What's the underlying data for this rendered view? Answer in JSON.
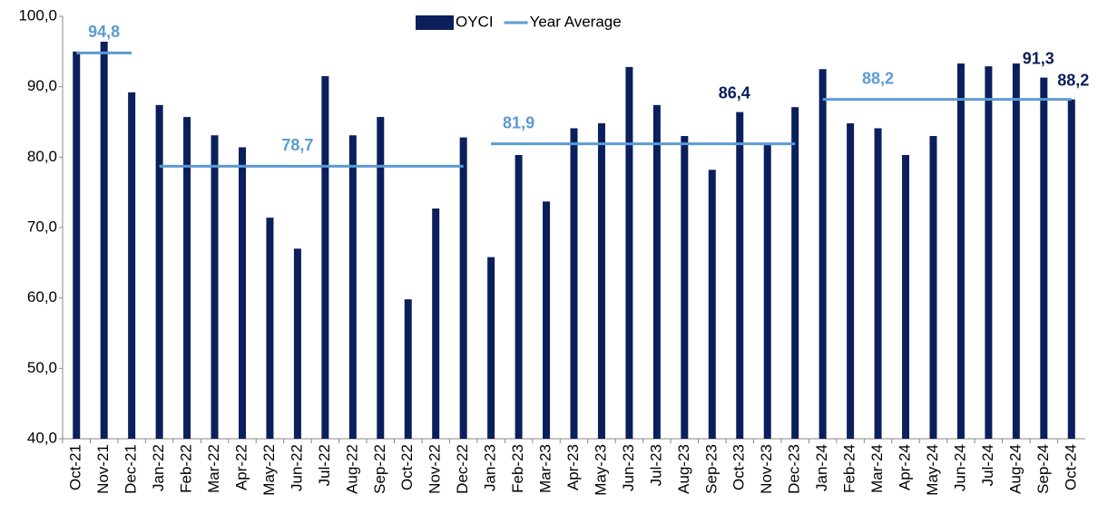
{
  "chart_data": {
    "type": "bar",
    "categories": [
      "Oct-21",
      "Nov-21",
      "Dec-21",
      "Jan-22",
      "Feb-22",
      "Mar-22",
      "Apr-22",
      "May-22",
      "Jun-22",
      "Jul-22",
      "Aug-22",
      "Sep-22",
      "Oct-22",
      "Nov-22",
      "Dec-22",
      "Jan-23",
      "Feb-23",
      "Mar-23",
      "Apr-23",
      "May-23",
      "Jun-23",
      "Jul-23",
      "Aug-23",
      "Sep-23",
      "Oct-23",
      "Nov-23",
      "Dec-23",
      "Jan-24",
      "Feb-24",
      "Mar-24",
      "Apr-24",
      "May-24",
      "Jun-24",
      "Jul-24",
      "Aug-24",
      "Sep-24",
      "Oct-24"
    ],
    "series": [
      {
        "name": "OYCI",
        "color": "#0b1f5c",
        "values": [
          95.0,
          96.4,
          89.2,
          87.4,
          85.7,
          83.1,
          81.4,
          71.4,
          67.0,
          91.5,
          83.1,
          85.7,
          59.8,
          72.7,
          82.8,
          65.8,
          80.3,
          73.7,
          84.1,
          84.8,
          92.8,
          87.4,
          83.0,
          78.2,
          86.4,
          81.7,
          87.1,
          92.5,
          84.8,
          84.1,
          80.3,
          83.0,
          93.3,
          92.9,
          93.3,
          91.3,
          88.2
        ],
        "value_labels": [
          null,
          null,
          null,
          null,
          null,
          null,
          null,
          null,
          null,
          null,
          null,
          null,
          null,
          null,
          null,
          null,
          null,
          null,
          null,
          null,
          null,
          null,
          null,
          null,
          "86,4",
          null,
          null,
          null,
          null,
          null,
          null,
          null,
          null,
          null,
          null,
          "91,3",
          "88,2"
        ]
      },
      {
        "name": "Year Average",
        "color": "#5b9bd5",
        "type": "line",
        "values": [
          94.8,
          94.8,
          94.8,
          78.7,
          78.7,
          78.7,
          78.7,
          78.7,
          78.7,
          78.7,
          78.7,
          78.7,
          78.7,
          78.7,
          78.7,
          81.9,
          81.9,
          81.9,
          81.9,
          81.9,
          81.9,
          81.9,
          81.9,
          81.9,
          81.9,
          81.9,
          81.9,
          88.2,
          88.2,
          88.2,
          88.2,
          88.2,
          88.2,
          88.2,
          88.2,
          88.2,
          88.2
        ],
        "value_labels": [
          null,
          "94,8",
          null,
          null,
          null,
          null,
          null,
          null,
          "78,7",
          null,
          null,
          null,
          null,
          null,
          null,
          null,
          "81,9",
          null,
          null,
          null,
          null,
          null,
          null,
          null,
          null,
          null,
          null,
          null,
          null,
          "88,2",
          null,
          null,
          null,
          null,
          null,
          null,
          null
        ]
      }
    ],
    "ylim": [
      40,
      100
    ],
    "yticks": [
      {
        "value": 40,
        "label": "40,0"
      },
      {
        "value": 50,
        "label": "50,0"
      },
      {
        "value": 60,
        "label": "60,0"
      },
      {
        "value": 70,
        "label": "70,0"
      },
      {
        "value": 80,
        "label": "80,0"
      },
      {
        "value": 90,
        "label": "90,0"
      },
      {
        "value": 100,
        "label": "100,0"
      }
    ],
    "legend": "top"
  }
}
